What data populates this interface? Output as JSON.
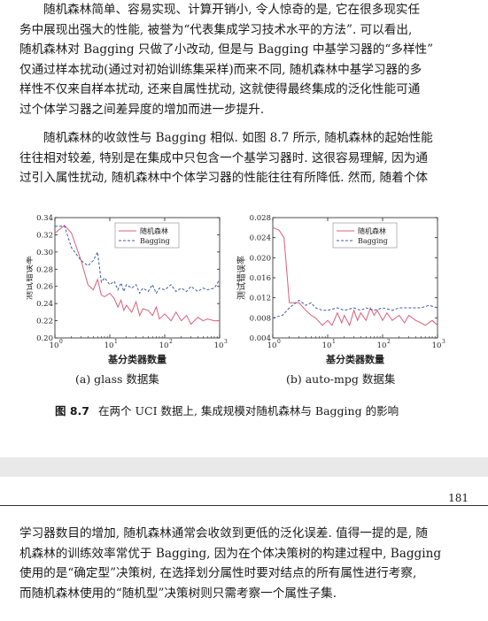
{
  "paragraph1": [
    "随机森林简单、容易实现、计算开销小, 令人惊奇的是, 它在很多现实任",
    "务中展现出强大的性能, 被誉为“代表集成学习技术水平的方法”. 可以看出,",
    "随机森林对 Bagging 只做了小改动, 但是与 Bagging 中基学习器的“多样性”",
    "仅通过样本扰动(通过对初始训练集采样)而来不同, 随机森林中基学习器的多",
    "样性不仅来自样本扰动, 还来自属性扰动, 这就使得最终集成的泛化性能可通",
    "过个体学习器之间差异度的增加而进一步提升."
  ],
  "paragraph2": [
    "随机森林的收敛性与 Bagging 相似. 如图 8.7 所示, 随机森林的起始性能",
    "往往相对较差, 特别是在集成中只包含一个基学习器时. 这很容易理解, 因为通",
    "过引入属性扰动, 随机森林中个体学习器的性能往往有所降低. 然而, 随着个体"
  ],
  "figure": {
    "label": "图 8.7",
    "caption": "在两个 UCI 数据上, 集成规模对随机森林与 Bagging 的影响"
  },
  "page_number": "181",
  "paragraph3": [
    "学习器数目的增加, 随机森林通常会收敛到更低的泛化误差. 值得一提的是, 随",
    "机森林的训练效率常优于 Bagging, 因为在个体决策树的构建过程中, Bagging",
    "使用的是“确定型”决策树, 在选择划分属性时要对结点的所有属性进行考察,",
    "而随机森林使用的“随机型”决策树则只需考察一个属性子集."
  ],
  "colors": {
    "random_forest": "#d9607a",
    "bagging": "#3f5aa0"
  },
  "chart_data": [
    {
      "type": "line",
      "subcaption": "(a) glass 数据集",
      "xlabel": "基分类器数量",
      "ylabel": "测试错误率",
      "xscale": "log",
      "xlim": [
        1,
        1000
      ],
      "ylim": [
        0.2,
        0.34
      ],
      "xticks": [
        1,
        10,
        100,
        1000
      ],
      "xtick_labels": [
        "10",
        "10",
        "10",
        "10"
      ],
      "xtick_exponents": [
        "0",
        "1",
        "2",
        "3"
      ],
      "yticks": [
        0.2,
        0.22,
        0.24,
        0.26,
        0.28,
        0.3,
        0.32,
        0.34
      ],
      "ytick_labels": [
        "0.20",
        "0.22",
        "0.24",
        "0.26",
        "0.28",
        "0.30",
        "0.32",
        "0.34"
      ],
      "legend": "top-right",
      "series": [
        {
          "name": "随机森林",
          "style": "solid",
          "x": [
            1,
            1.5,
            2,
            3,
            4,
            5,
            6,
            7,
            8,
            10,
            12,
            14,
            16,
            18,
            20,
            25,
            30,
            35,
            40,
            50,
            60,
            70,
            80,
            100,
            130,
            160,
            200,
            250,
            300,
            400,
            500,
            600,
            800,
            1000
          ],
          "y": [
            0.322,
            0.331,
            0.322,
            0.29,
            0.262,
            0.256,
            0.268,
            0.25,
            0.248,
            0.252,
            0.246,
            0.236,
            0.244,
            0.232,
            0.238,
            0.23,
            0.242,
            0.226,
            0.234,
            0.232,
            0.226,
            0.236,
            0.222,
            0.228,
            0.22,
            0.23,
            0.22,
            0.226,
            0.216,
            0.224,
            0.22,
            0.222,
            0.22,
            0.22
          ]
        },
        {
          "name": "Bagging",
          "style": "dashed",
          "x": [
            1,
            1.5,
            2,
            3,
            4,
            5,
            6,
            7,
            8,
            10,
            12,
            14,
            16,
            18,
            20,
            25,
            30,
            35,
            40,
            50,
            60,
            70,
            80,
            100,
            130,
            160,
            200,
            250,
            300,
            400,
            500,
            600,
            800,
            1000
          ],
          "y": [
            0.33,
            0.33,
            0.305,
            0.29,
            0.284,
            0.29,
            0.3,
            0.265,
            0.27,
            0.262,
            0.266,
            0.256,
            0.264,
            0.254,
            0.262,
            0.258,
            0.262,
            0.252,
            0.258,
            0.254,
            0.262,
            0.252,
            0.258,
            0.256,
            0.262,
            0.254,
            0.258,
            0.254,
            0.26,
            0.254,
            0.258,
            0.256,
            0.258,
            0.268
          ]
        }
      ]
    },
    {
      "type": "line",
      "subcaption": "(b) auto-mpg 数据集",
      "xlabel": "基分类器数量",
      "ylabel": "测试错误率",
      "xscale": "log",
      "xlim": [
        1,
        1000
      ],
      "ylim": [
        0.004,
        0.028
      ],
      "xticks": [
        1,
        10,
        100,
        1000
      ],
      "xtick_labels": [
        "10",
        "10",
        "10",
        "10"
      ],
      "xtick_exponents": [
        "0",
        "1",
        "2",
        "3"
      ],
      "yticks": [
        0.004,
        0.008,
        0.012,
        0.016,
        0.02,
        0.024,
        0.028
      ],
      "ytick_labels": [
        "0.004",
        "0.008",
        "0.012",
        "0.016",
        "0.020",
        "0.024",
        "0.028"
      ],
      "legend": "top-right",
      "series": [
        {
          "name": "随机森林",
          "style": "solid",
          "x": [
            1,
            1.3,
            1.6,
            2,
            3,
            4,
            5,
            6,
            8,
            10,
            12,
            15,
            18,
            20,
            25,
            30,
            35,
            40,
            50,
            60,
            70,
            80,
            100,
            120,
            150,
            200,
            250,
            300,
            400,
            500,
            600,
            800,
            1000
          ],
          "y": [
            0.026,
            0.0255,
            0.024,
            0.011,
            0.011,
            0.0095,
            0.0085,
            0.008,
            0.0065,
            0.0075,
            0.0065,
            0.009,
            0.007,
            0.0085,
            0.0065,
            0.0095,
            0.0075,
            0.009,
            0.0075,
            0.01,
            0.0085,
            0.0095,
            0.0075,
            0.009,
            0.0075,
            0.0085,
            0.007,
            0.0085,
            0.0075,
            0.007,
            0.0065,
            0.0075,
            0.0065
          ]
        },
        {
          "name": "Bagging",
          "style": "dashed",
          "x": [
            1,
            1.5,
            2,
            3,
            4,
            5,
            6,
            8,
            10,
            15,
            20,
            30,
            40,
            50,
            70,
            100,
            150,
            200,
            300,
            500,
            700,
            1000
          ],
          "y": [
            0.008,
            0.0085,
            0.01,
            0.0115,
            0.0105,
            0.011,
            0.01,
            0.0095,
            0.0095,
            0.01,
            0.0095,
            0.01,
            0.0095,
            0.01,
            0.0095,
            0.01,
            0.0095,
            0.01,
            0.01,
            0.01,
            0.0105,
            0.01
          ]
        }
      ]
    }
  ]
}
